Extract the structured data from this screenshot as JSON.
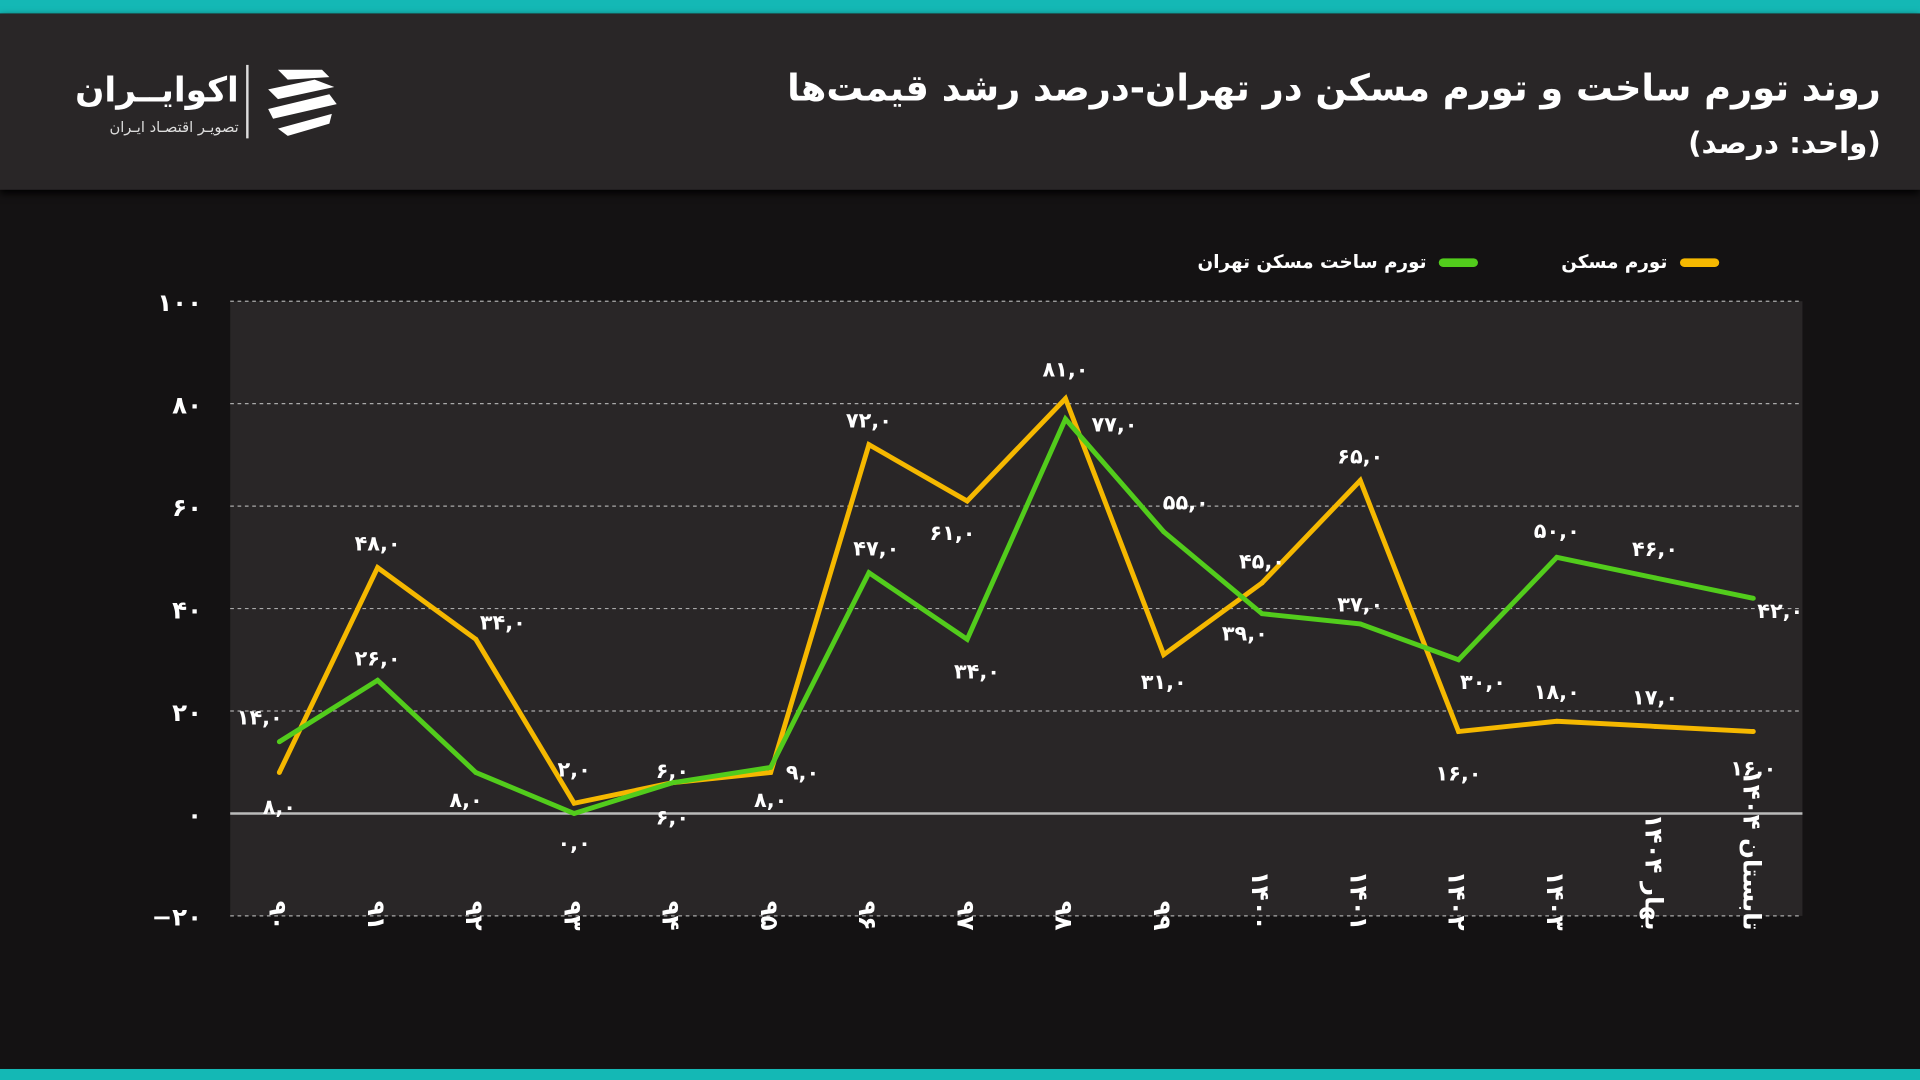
{
  "header": {
    "title": "روند تورم ساخت و تورم مسکن در تهران-درصد رشد قیمت‌ها",
    "subtitle": "(واحد: درصد)"
  },
  "logo": {
    "name": "اکوایــران",
    "tagline": "تصویـر اقتصـاد ایـران"
  },
  "colors": {
    "housing": "#f5b800",
    "construction": "#52cc1c",
    "accent": "#14b8b5"
  },
  "chart_data": {
    "type": "line",
    "title": "روند تورم ساخت و تورم مسکن در تهران-درصد رشد قیمت‌ها",
    "ylabel": "",
    "ylim": [
      -20,
      100
    ],
    "yticks": [
      -20,
      0,
      20,
      40,
      60,
      80,
      100
    ],
    "ytick_labels": [
      "−۲۰",
      "۰",
      "۲۰",
      "۴۰",
      "۶۰",
      "۸۰",
      "۱۰۰"
    ],
    "grid": true,
    "legend": "top-right",
    "categories": [
      "۹۰",
      "۹۱",
      "۹۲",
      "۹۳",
      "۹۴",
      "۹۵",
      "۹۶",
      "۹۷",
      "۹۸",
      "۹۹",
      "۱۴۰۰",
      "۱۴۰۱",
      "۱۴۰۲",
      "۱۴۰۳",
      "بهار ۱۴۰۴",
      "تابستان ۱۴۰۴"
    ],
    "series": [
      {
        "name": "تورم مسکن",
        "color": "#f5b800",
        "values": [
          8,
          48,
          34,
          2,
          6,
          8,
          72,
          61,
          81,
          31,
          45,
          65,
          16,
          18,
          17,
          16
        ],
        "labels": [
          "۸,۰",
          "۴۸,۰",
          "۳۴,۰",
          "۲,۰",
          "۶,۰",
          "۸,۰",
          "۷۲,۰",
          "۶۱,۰",
          "۸۱,۰",
          "۳۱,۰",
          "۴۵,۰",
          "۶۵,۰",
          "۱۶,۰",
          "۱۸,۰",
          "۱۷,۰",
          "۱۶,۰"
        ]
      },
      {
        "name": "تورم ساخت مسکن تهران",
        "color": "#52cc1c",
        "values": [
          14,
          26,
          8,
          0,
          6,
          9,
          47,
          34,
          77,
          55,
          39,
          37,
          30,
          50,
          46,
          42
        ],
        "labels": [
          "۱۴,۰",
          "۲۶,۰",
          "۸,۰",
          "۰,۰",
          "۶,۰",
          "۹,۰",
          "۴۷,۰",
          "۳۴,۰",
          "۷۷,۰",
          "۵۵,۰",
          "۳۹,۰",
          "۳۷,۰",
          "۳۰,۰",
          "۵۰,۰",
          "۴۶,۰",
          "۴۲,۰"
        ]
      }
    ]
  }
}
